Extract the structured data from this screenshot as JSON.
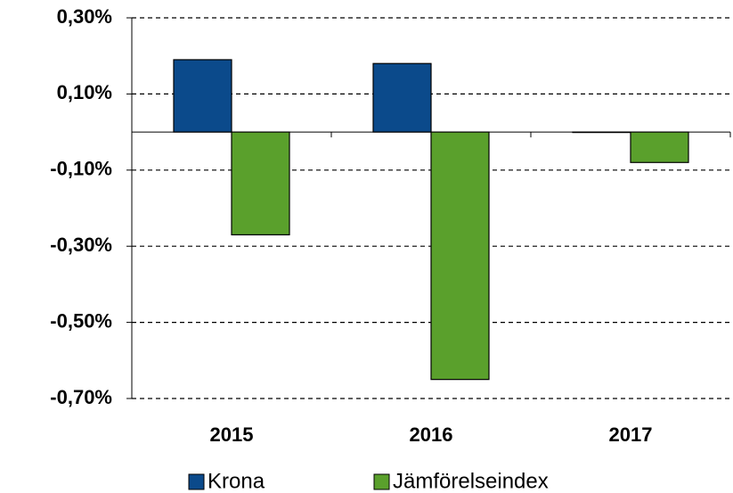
{
  "chart_data": {
    "type": "bar",
    "categories": [
      "2015",
      "2016",
      "2017"
    ],
    "series": [
      {
        "name": "Krona",
        "color": "#0b4a8b",
        "values": [
          0.19,
          0.18,
          0
        ]
      },
      {
        "name": "Jämförelseindex",
        "color": "#5aa02c",
        "values": [
          -0.27,
          -0.65,
          -0.08
        ]
      }
    ],
    "ylim": [
      -0.7,
      0.3
    ],
    "yticks": [
      {
        "value": 0.3,
        "label": "0,30%"
      },
      {
        "value": 0.1,
        "label": "0,10%"
      },
      {
        "value": -0.1,
        "label": "-0,10%"
      },
      {
        "value": -0.3,
        "label": "-0,30%"
      },
      {
        "value": -0.5,
        "label": "-0,50%"
      },
      {
        "value": -0.7,
        "label": "-0,70%"
      }
    ],
    "grid": true,
    "legend": "bottom"
  }
}
